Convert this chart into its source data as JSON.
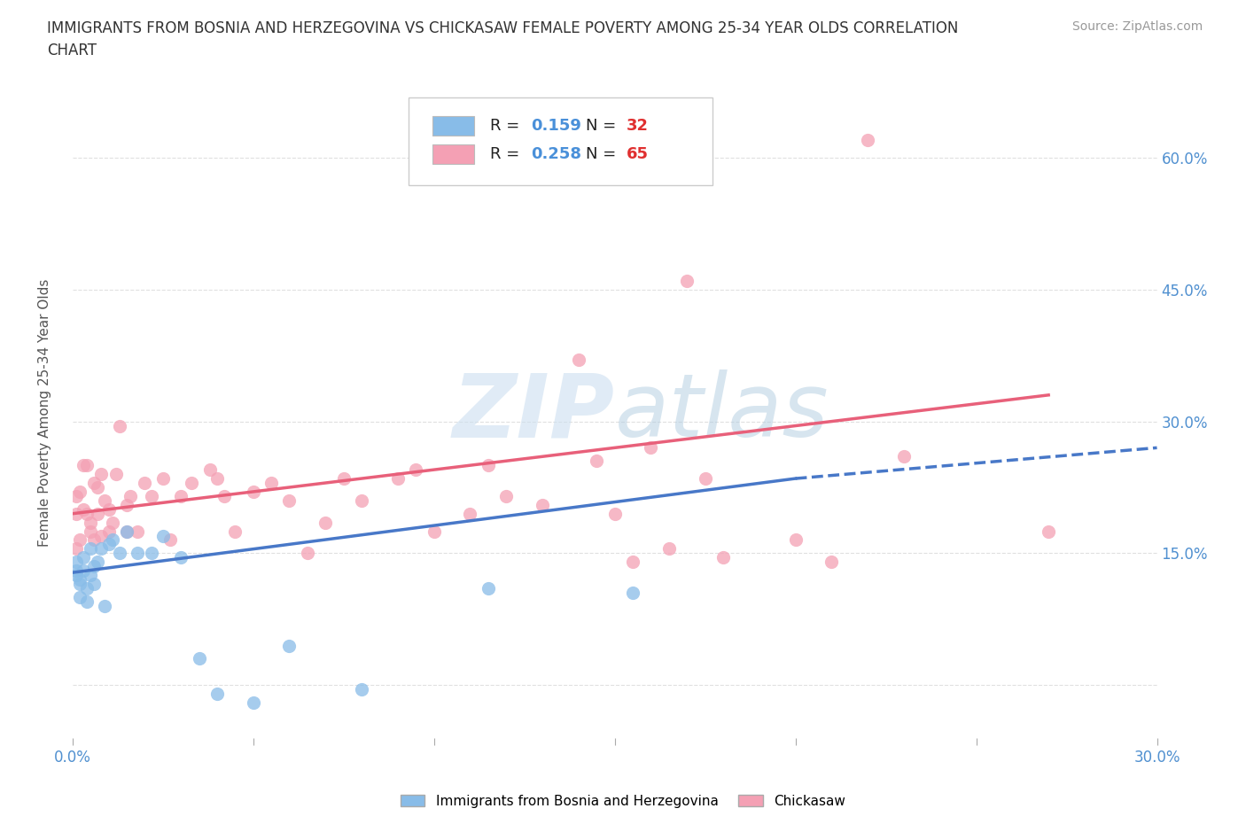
{
  "title": "IMMIGRANTS FROM BOSNIA AND HERZEGOVINA VS CHICKASAW FEMALE POVERTY AMONG 25-34 YEAR OLDS CORRELATION\nCHART",
  "source": "Source: ZipAtlas.com",
  "ylabel": "Female Poverty Among 25-34 Year Olds",
  "xlim": [
    0.0,
    0.3
  ],
  "ylim": [
    -0.06,
    0.68
  ],
  "xticks": [
    0.0,
    0.05,
    0.1,
    0.15,
    0.2,
    0.25,
    0.3
  ],
  "xtick_labels": [
    "0.0%",
    "",
    "",
    "",
    "",
    "",
    "30.0%"
  ],
  "yticks_right": [
    0.0,
    0.15,
    0.3,
    0.45,
    0.6
  ],
  "ytick_labels_right": [
    "",
    "15.0%",
    "30.0%",
    "45.0%",
    "60.0%"
  ],
  "background_color": "#ffffff",
  "grid_color": "#e0e0e0",
  "blue_color": "#88bce8",
  "pink_color": "#f4a0b4",
  "blue_line_color": "#4878c8",
  "pink_line_color": "#e8607a",
  "blue_scatter_x": [
    0.001,
    0.001,
    0.001,
    0.002,
    0.002,
    0.002,
    0.003,
    0.003,
    0.004,
    0.004,
    0.005,
    0.005,
    0.006,
    0.006,
    0.007,
    0.008,
    0.009,
    0.01,
    0.011,
    0.013,
    0.015,
    0.018,
    0.022,
    0.025,
    0.03,
    0.035,
    0.04,
    0.05,
    0.06,
    0.08,
    0.115,
    0.155
  ],
  "blue_scatter_y": [
    0.125,
    0.14,
    0.13,
    0.115,
    0.1,
    0.12,
    0.13,
    0.145,
    0.095,
    0.11,
    0.155,
    0.125,
    0.115,
    0.135,
    0.14,
    0.155,
    0.09,
    0.16,
    0.165,
    0.15,
    0.175,
    0.15,
    0.15,
    0.17,
    0.145,
    0.03,
    -0.01,
    -0.02,
    0.045,
    -0.005,
    0.11,
    0.105
  ],
  "pink_scatter_x": [
    0.001,
    0.001,
    0.001,
    0.002,
    0.002,
    0.003,
    0.003,
    0.004,
    0.004,
    0.005,
    0.005,
    0.006,
    0.006,
    0.007,
    0.007,
    0.008,
    0.008,
    0.009,
    0.01,
    0.01,
    0.011,
    0.012,
    0.013,
    0.015,
    0.015,
    0.016,
    0.018,
    0.02,
    0.022,
    0.025,
    0.027,
    0.03,
    0.033,
    0.038,
    0.04,
    0.042,
    0.045,
    0.05,
    0.055,
    0.06,
    0.065,
    0.07,
    0.075,
    0.08,
    0.09,
    0.095,
    0.1,
    0.11,
    0.115,
    0.12,
    0.13,
    0.14,
    0.145,
    0.15,
    0.155,
    0.16,
    0.165,
    0.17,
    0.175,
    0.18,
    0.2,
    0.21,
    0.22,
    0.23,
    0.27
  ],
  "pink_scatter_y": [
    0.155,
    0.195,
    0.215,
    0.165,
    0.22,
    0.2,
    0.25,
    0.195,
    0.25,
    0.185,
    0.175,
    0.23,
    0.165,
    0.225,
    0.195,
    0.24,
    0.17,
    0.21,
    0.2,
    0.175,
    0.185,
    0.24,
    0.295,
    0.205,
    0.175,
    0.215,
    0.175,
    0.23,
    0.215,
    0.235,
    0.165,
    0.215,
    0.23,
    0.245,
    0.235,
    0.215,
    0.175,
    0.22,
    0.23,
    0.21,
    0.15,
    0.185,
    0.235,
    0.21,
    0.235,
    0.245,
    0.175,
    0.195,
    0.25,
    0.215,
    0.205,
    0.37,
    0.255,
    0.195,
    0.14,
    0.27,
    0.155,
    0.46,
    0.235,
    0.145,
    0.165,
    0.14,
    0.62,
    0.26,
    0.175
  ],
  "blue_line_x0": 0.0,
  "blue_line_y0": 0.128,
  "blue_line_x1": 0.2,
  "blue_line_y1": 0.235,
  "blue_line_x1_dash": 0.3,
  "blue_line_y1_dash": 0.27,
  "pink_line_x0": 0.0,
  "pink_line_y0": 0.195,
  "pink_line_x1": 0.27,
  "pink_line_y1": 0.33
}
